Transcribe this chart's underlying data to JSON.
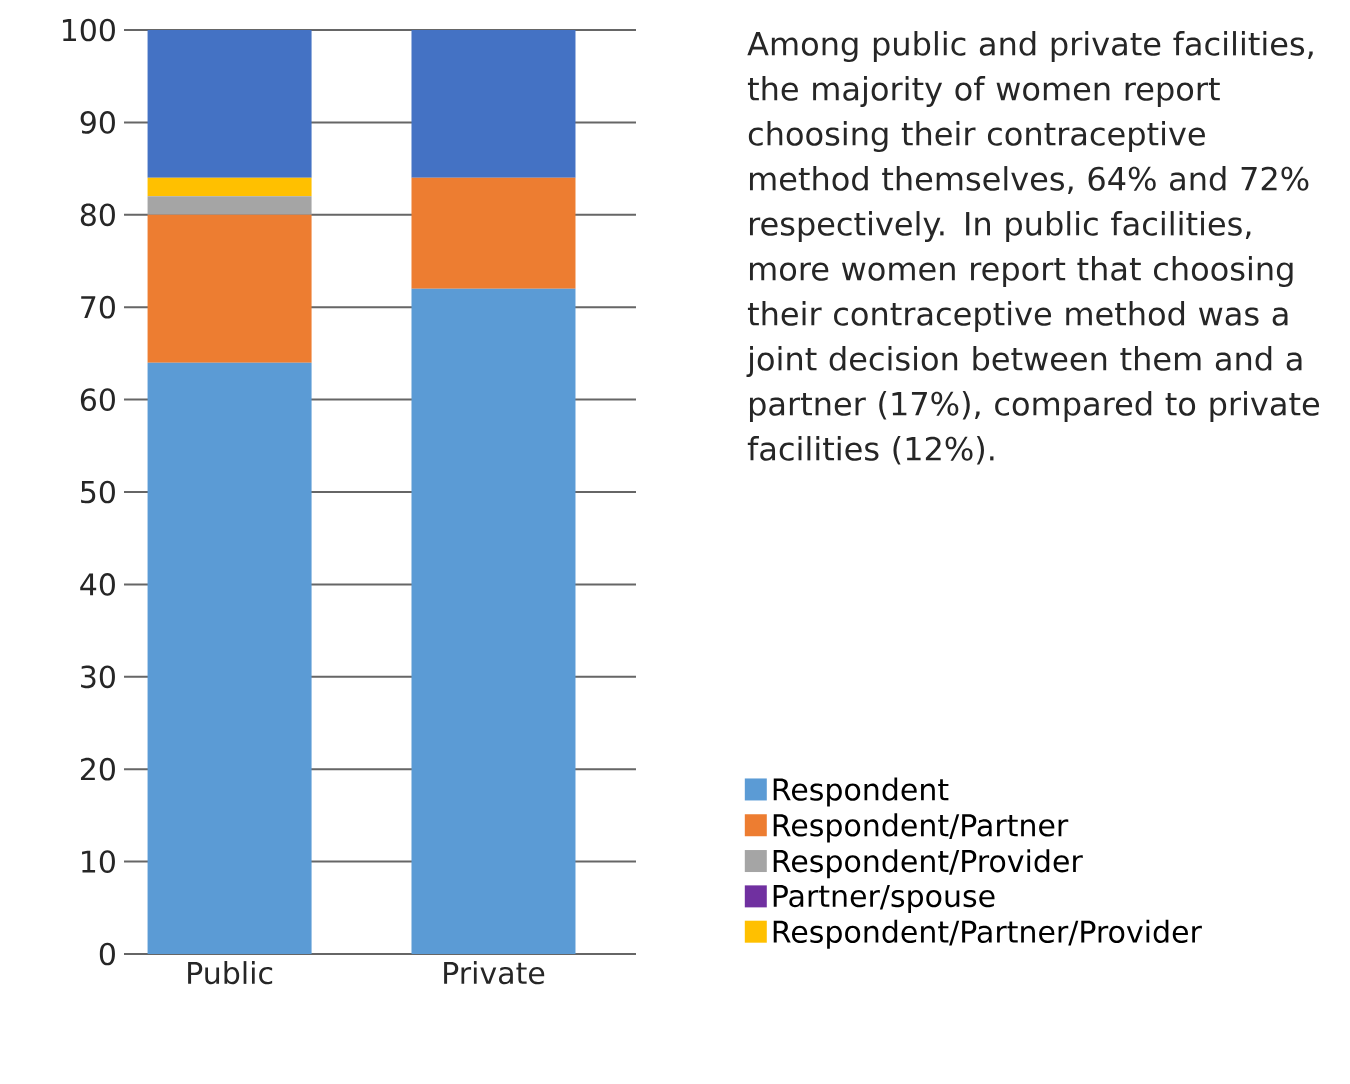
{
  "chart_data": {
    "type": "bar",
    "stacked": true,
    "categories": [
      "Public",
      "Private"
    ],
    "series": [
      {
        "name": "Respondent",
        "color": "#5b9bd5",
        "values": [
          64,
          72
        ]
      },
      {
        "name": "Respondent/Partner",
        "color": "#ed7d31",
        "values": [
          16,
          12
        ]
      },
      {
        "name": "Respondent/Provider",
        "color": "#a5a5a5",
        "values": [
          2,
          0
        ]
      },
      {
        "name": "Partner/spouse",
        "color": "#7030a0",
        "values": [
          0,
          0
        ]
      },
      {
        "name": "Respondent/Partner/Provider",
        "color": "#ffc000",
        "values": [
          2,
          0
        ]
      },
      {
        "color": "#4472c4",
        "values": [
          16,
          16
        ]
      }
    ],
    "ylim": [
      0,
      100
    ],
    "yticks": [
      0,
      10,
      20,
      30,
      40,
      50,
      60,
      70,
      80,
      90,
      100
    ],
    "grid": "y",
    "legend": "bottom right",
    "annotations": [
      "Among public and private facilities, the majority of women report choosing their contraceptive method themselves, 64% and 72% respectively. In public facilities, more women report that choosing their contraceptive method was a joint decision between them and a partner (17%), compared to private facilities (12%)."
    ]
  }
}
